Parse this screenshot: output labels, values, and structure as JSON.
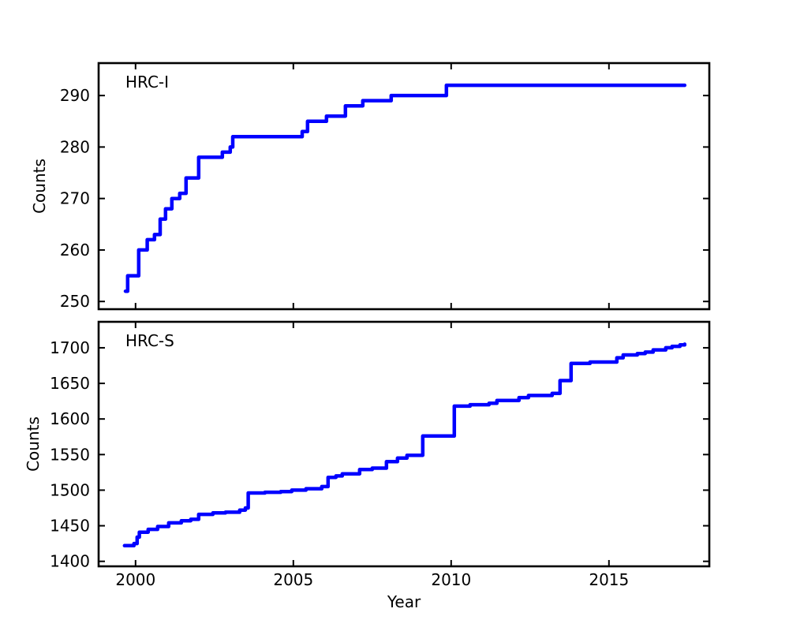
{
  "figure": {
    "background": "#ffffff",
    "frame_color": "#000000",
    "line_color": "#0000ff",
    "xlabel": "Year",
    "ylabel": "Counts"
  },
  "chart_data": [
    {
      "type": "line",
      "title": "HRC-I",
      "ylabel": "Counts",
      "xlabel": "",
      "legend": "none",
      "grid": false,
      "step": true,
      "color": "#0000ff",
      "xlim": [
        1998.83,
        2018.18
      ],
      "ylim": [
        248.5,
        296.3
      ],
      "xticks": [
        2000,
        2005,
        2010,
        2015
      ],
      "show_xticklabels": false,
      "yticks": [
        250,
        260,
        270,
        280,
        290
      ],
      "x": [
        1999.68,
        1999.75,
        2000.1,
        2000.37,
        2000.6,
        2000.78,
        2000.95,
        2001.15,
        2001.4,
        2001.6,
        2002.0,
        2002.75,
        2003.0,
        2003.08,
        2005.28,
        2005.45,
        2006.05,
        2006.65,
        2007.2,
        2008.1,
        2009.85,
        2017.4
      ],
      "y": [
        252,
        255,
        260,
        262,
        263,
        266,
        268,
        270,
        271,
        274,
        278,
        279,
        280,
        282,
        283,
        285,
        286,
        288,
        289,
        290,
        292,
        292
      ]
    },
    {
      "type": "line",
      "title": "HRC-S",
      "ylabel": "Counts",
      "xlabel": "Year",
      "legend": "none",
      "grid": false,
      "step": true,
      "color": "#0000ff",
      "xlim": [
        1998.83,
        2018.18
      ],
      "ylim": [
        1393.0,
        1736.5
      ],
      "xticks": [
        2000,
        2005,
        2010,
        2015
      ],
      "show_xticklabels": true,
      "yticks": [
        1400,
        1450,
        1500,
        1550,
        1600,
        1650,
        1700
      ],
      "x": [
        1999.65,
        1999.95,
        2000.05,
        2000.12,
        2000.4,
        2000.7,
        2001.05,
        2001.45,
        2001.75,
        2002.0,
        2002.45,
        2002.85,
        2003.3,
        2003.48,
        2003.57,
        2004.1,
        2004.6,
        2004.95,
        2005.4,
        2005.9,
        2006.1,
        2006.35,
        2006.55,
        2007.1,
        2007.5,
        2007.95,
        2008.3,
        2008.6,
        2009.1,
        2010.1,
        2010.6,
        2011.2,
        2011.45,
        2012.15,
        2012.45,
        2013.2,
        2013.45,
        2013.8,
        2014.4,
        2015.25,
        2015.45,
        2015.9,
        2016.15,
        2016.4,
        2016.8,
        2017.0,
        2017.25,
        2017.4
      ],
      "y": [
        1422,
        1425,
        1434,
        1441,
        1445,
        1449,
        1454,
        1457,
        1459,
        1466,
        1468,
        1469,
        1472,
        1475,
        1496,
        1497,
        1498,
        1500,
        1502,
        1505,
        1518,
        1520,
        1523,
        1529,
        1531,
        1540,
        1545,
        1549,
        1576,
        1618,
        1620,
        1622,
        1626,
        1630,
        1633,
        1636,
        1654,
        1678,
        1680,
        1686,
        1690,
        1692,
        1694,
        1697,
        1700,
        1702,
        1704,
        1705
      ]
    }
  ]
}
